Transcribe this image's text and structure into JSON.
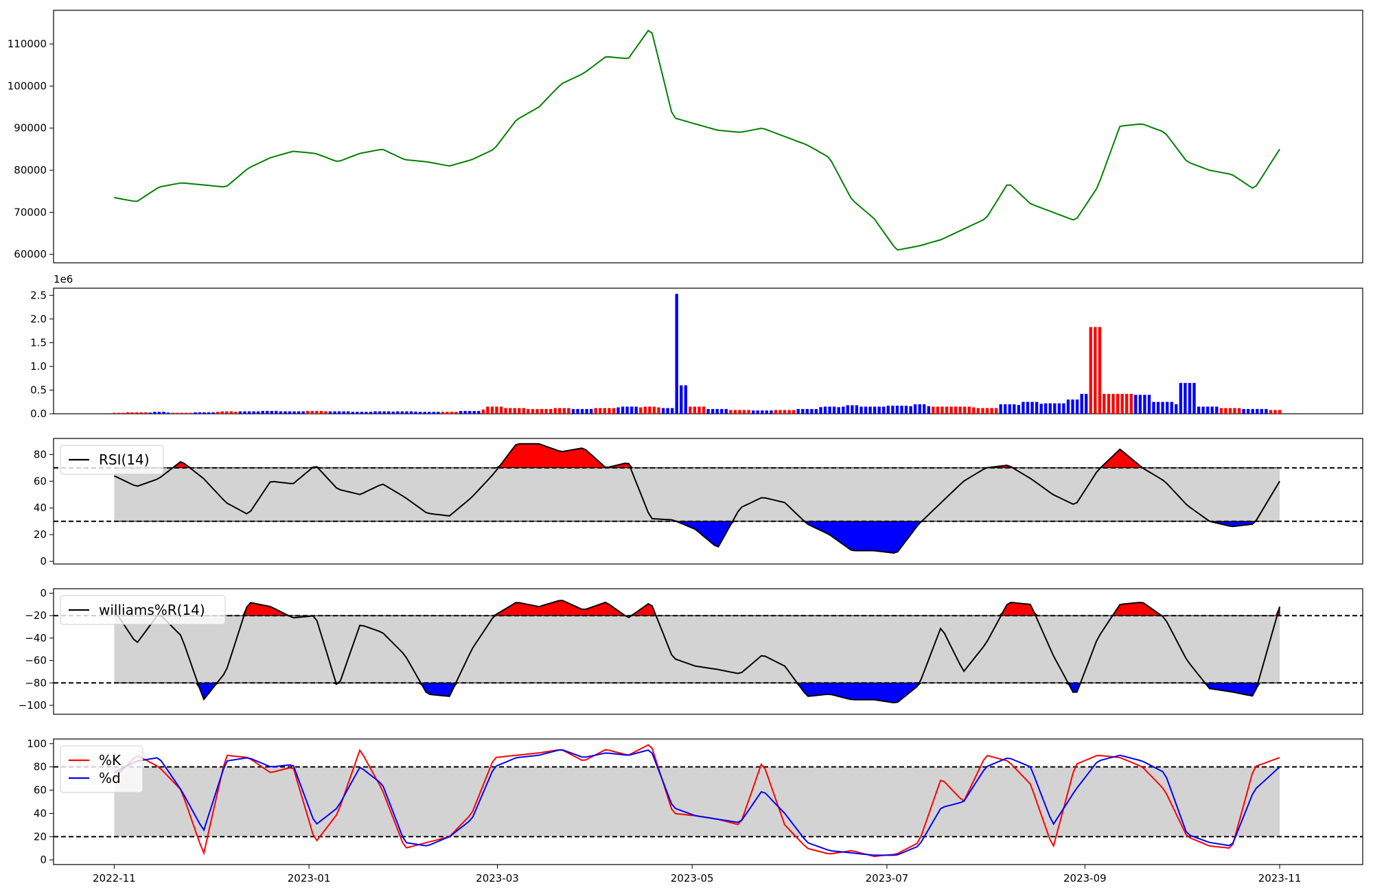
{
  "chart_data": [
    {
      "type": "line",
      "panel": "price",
      "color": "#008000",
      "ylim": [
        58000,
        118000
      ],
      "yticks": [
        60000,
        70000,
        80000,
        90000,
        100000,
        110000
      ],
      "ytick_labels": [
        "60000",
        "70000",
        "80000",
        "90000",
        "100000",
        "110000"
      ],
      "x_dates": [
        "2022-11-01",
        "2022-11-08",
        "2022-11-15",
        "2022-11-22",
        "2022-11-29",
        "2022-12-06",
        "2022-12-13",
        "2022-12-20",
        "2022-12-27",
        "2023-01-03",
        "2023-01-10",
        "2023-01-17",
        "2023-01-24",
        "2023-01-31",
        "2023-02-07",
        "2023-02-14",
        "2023-02-21",
        "2023-02-28",
        "2023-03-07",
        "2023-03-14",
        "2023-03-21",
        "2023-03-28",
        "2023-04-04",
        "2023-04-11",
        "2023-04-18",
        "2023-04-25",
        "2023-05-02",
        "2023-05-09",
        "2023-05-16",
        "2023-05-23",
        "2023-05-30",
        "2023-06-06",
        "2023-06-13",
        "2023-06-20",
        "2023-06-27",
        "2023-07-04",
        "2023-07-11",
        "2023-07-18",
        "2023-07-25",
        "2023-08-01",
        "2023-08-08",
        "2023-08-15",
        "2023-08-22",
        "2023-08-29",
        "2023-09-05",
        "2023-09-12",
        "2023-09-19",
        "2023-09-26",
        "2023-10-03",
        "2023-10-10",
        "2023-10-17",
        "2023-10-24",
        "2023-11-01"
      ],
      "values": [
        73500,
        72500,
        76000,
        77000,
        76500,
        76000,
        80500,
        83000,
        84500,
        84000,
        82000,
        84000,
        85000,
        82500,
        82000,
        81000,
        82500,
        85000,
        92000,
        95000,
        100500,
        103000,
        107000,
        106500,
        114000,
        92500,
        91000,
        89500,
        89000,
        90000,
        88000,
        86000,
        83000,
        73000,
        68500,
        61000,
        62000,
        63500,
        66000,
        68500,
        77000,
        72000,
        70000,
        68000,
        76000,
        90500,
        91000,
        89000,
        82000,
        80000,
        79000,
        75500,
        85000
      ]
    },
    {
      "type": "bar",
      "panel": "volume",
      "offset_label": "1e6",
      "ylim": [
        0,
        2.65
      ],
      "yticks": [
        0,
        0.5,
        1.0,
        1.5,
        2.0,
        2.5
      ],
      "ytick_labels": [
        "0.0",
        "0.5",
        "1.0",
        "1.5",
        "2.0",
        "2.5"
      ],
      "up_color": "#ff0000",
      "down_color": "#0000ff",
      "x_dates": [
        "2022-11-01",
        "2022-11-08",
        "2022-11-15",
        "2022-11-22",
        "2022-11-29",
        "2022-12-06",
        "2022-12-13",
        "2022-12-20",
        "2022-12-27",
        "2023-01-03",
        "2023-01-10",
        "2023-01-17",
        "2023-01-24",
        "2023-01-31",
        "2023-02-07",
        "2023-02-14",
        "2023-02-21",
        "2023-02-28",
        "2023-03-07",
        "2023-03-14",
        "2023-03-21",
        "2023-03-28",
        "2023-04-04",
        "2023-04-11",
        "2023-04-18",
        "2023-04-25",
        "2023-04-27",
        "2023-04-28",
        "2023-05-02",
        "2023-05-09",
        "2023-05-16",
        "2023-05-23",
        "2023-05-30",
        "2023-06-06",
        "2023-06-13",
        "2023-06-20",
        "2023-06-27",
        "2023-07-04",
        "2023-07-11",
        "2023-07-18",
        "2023-07-25",
        "2023-08-01",
        "2023-08-08",
        "2023-08-15",
        "2023-08-22",
        "2023-08-29",
        "2023-09-01",
        "2023-09-04",
        "2023-09-12",
        "2023-09-19",
        "2023-09-26",
        "2023-10-03",
        "2023-10-10",
        "2023-10-17",
        "2023-10-24",
        "2023-11-01"
      ],
      "values": [
        0.02,
        0.03,
        0.04,
        0.02,
        0.03,
        0.05,
        0.05,
        0.06,
        0.05,
        0.06,
        0.05,
        0.04,
        0.05,
        0.05,
        0.04,
        0.04,
        0.06,
        0.15,
        0.12,
        0.1,
        0.12,
        0.1,
        0.12,
        0.15,
        0.15,
        0.12,
        2.53,
        0.6,
        0.15,
        0.1,
        0.08,
        0.07,
        0.08,
        0.1,
        0.15,
        0.18,
        0.15,
        0.17,
        0.2,
        0.15,
        0.15,
        0.12,
        0.2,
        0.25,
        0.22,
        0.3,
        0.42,
        1.83,
        0.42,
        0.4,
        0.25,
        0.65,
        0.15,
        0.12,
        0.1,
        0.08
      ],
      "up": [
        true,
        true,
        false,
        true,
        false,
        true,
        false,
        false,
        false,
        true,
        false,
        false,
        false,
        false,
        false,
        true,
        false,
        true,
        true,
        true,
        true,
        false,
        true,
        false,
        true,
        false,
        false,
        false,
        true,
        false,
        true,
        false,
        true,
        false,
        false,
        false,
        false,
        false,
        false,
        true,
        true,
        true,
        false,
        false,
        false,
        false,
        false,
        true,
        true,
        false,
        false,
        false,
        false,
        true,
        false,
        true
      ]
    },
    {
      "type": "line",
      "panel": "rsi",
      "ylim": [
        -2,
        92
      ],
      "yticks": [
        0,
        20,
        40,
        60,
        80
      ],
      "ytick_labels": [
        "0",
        "20",
        "40",
        "60",
        "80"
      ],
      "upper": 70,
      "lower": 30,
      "legend": [
        "RSI(14)"
      ],
      "x_dates": [
        "2022-11-01",
        "2022-11-08",
        "2022-11-15",
        "2022-11-22",
        "2022-11-29",
        "2022-12-06",
        "2022-12-13",
        "2022-12-20",
        "2022-12-27",
        "2023-01-03",
        "2023-01-10",
        "2023-01-17",
        "2023-01-24",
        "2023-01-31",
        "2023-02-07",
        "2023-02-14",
        "2023-02-21",
        "2023-02-28",
        "2023-03-07",
        "2023-03-14",
        "2023-03-21",
        "2023-03-28",
        "2023-04-04",
        "2023-04-11",
        "2023-04-18",
        "2023-04-25",
        "2023-05-02",
        "2023-05-09",
        "2023-05-16",
        "2023-05-23",
        "2023-05-30",
        "2023-06-06",
        "2023-06-13",
        "2023-06-20",
        "2023-06-27",
        "2023-07-04",
        "2023-07-11",
        "2023-07-18",
        "2023-07-25",
        "2023-08-01",
        "2023-08-08",
        "2023-08-15",
        "2023-08-22",
        "2023-08-29",
        "2023-09-05",
        "2023-09-12",
        "2023-09-19",
        "2023-09-26",
        "2023-10-03",
        "2023-10-10",
        "2023-10-17",
        "2023-10-24",
        "2023-11-01"
      ],
      "values": [
        64,
        56,
        62,
        75,
        62,
        44,
        35,
        60,
        58,
        72,
        54,
        50,
        58,
        48,
        36,
        34,
        48,
        66,
        88,
        88,
        82,
        85,
        70,
        74,
        32,
        31,
        24,
        10,
        40,
        48,
        44,
        28,
        20,
        8,
        8,
        6,
        28,
        44,
        60,
        70,
        72,
        62,
        50,
        42,
        68,
        84,
        70,
        60,
        42,
        30,
        26,
        28,
        60
      ]
    },
    {
      "type": "line",
      "panel": "williams",
      "ylim": [
        -108,
        4
      ],
      "yticks": [
        -100,
        -80,
        -60,
        -40,
        -20,
        0
      ],
      "ytick_labels": [
        "−100",
        "−80",
        "−60",
        "−40",
        "−20",
        "0"
      ],
      "upper": -20,
      "lower": -80,
      "legend": [
        "williams%R(14)"
      ],
      "x_dates": [
        "2022-11-01",
        "2022-11-08",
        "2022-11-15",
        "2022-11-22",
        "2022-11-29",
        "2022-12-06",
        "2022-12-13",
        "2022-12-20",
        "2022-12-27",
        "2023-01-03",
        "2023-01-10",
        "2023-01-17",
        "2023-01-24",
        "2023-01-31",
        "2023-02-07",
        "2023-02-14",
        "2023-02-21",
        "2023-02-28",
        "2023-03-07",
        "2023-03-14",
        "2023-03-21",
        "2023-03-28",
        "2023-04-04",
        "2023-04-11",
        "2023-04-18",
        "2023-04-25",
        "2023-05-02",
        "2023-05-09",
        "2023-05-16",
        "2023-05-23",
        "2023-05-30",
        "2023-06-06",
        "2023-06-13",
        "2023-06-20",
        "2023-06-27",
        "2023-07-04",
        "2023-07-11",
        "2023-07-18",
        "2023-07-25",
        "2023-08-01",
        "2023-08-08",
        "2023-08-15",
        "2023-08-22",
        "2023-08-29",
        "2023-09-05",
        "2023-09-12",
        "2023-09-19",
        "2023-09-26",
        "2023-10-03",
        "2023-10-10",
        "2023-10-17",
        "2023-10-24",
        "2023-11-01"
      ],
      "values": [
        -15,
        -45,
        -18,
        -38,
        -95,
        -70,
        -8,
        -12,
        -22,
        -20,
        -85,
        -28,
        -35,
        -55,
        -90,
        -92,
        -50,
        -20,
        -8,
        -12,
        -6,
        -15,
        -8,
        -22,
        -8,
        -58,
        -65,
        -68,
        -72,
        -55,
        -65,
        -92,
        -90,
        -95,
        -95,
        -98,
        -82,
        -30,
        -70,
        -45,
        -8,
        -10,
        -55,
        -92,
        -40,
        -10,
        -8,
        -22,
        -60,
        -85,
        -88,
        -92,
        -12
      ]
    },
    {
      "type": "line",
      "panel": "stochastic",
      "ylim": [
        -4,
        104
      ],
      "yticks": [
        0,
        20,
        40,
        60,
        80,
        100
      ],
      "ytick_labels": [
        "0",
        "20",
        "40",
        "60",
        "80",
        "100"
      ],
      "upper": 80,
      "lower": 20,
      "legend": [
        "%K",
        "%d"
      ],
      "xticks": [
        "2022-11-01",
        "2023-01-01",
        "2023-03-01",
        "2023-05-01",
        "2023-07-01",
        "2023-09-01",
        "2023-11-01"
      ],
      "xtick_labels": [
        "2022-11",
        "2023-01",
        "2023-03",
        "2023-05",
        "2023-07",
        "2023-09",
        "2023-11"
      ],
      "x_dates": [
        "2022-11-01",
        "2022-11-08",
        "2022-11-15",
        "2022-11-22",
        "2022-11-29",
        "2022-12-06",
        "2022-12-13",
        "2022-12-20",
        "2022-12-27",
        "2023-01-03",
        "2023-01-10",
        "2023-01-17",
        "2023-01-24",
        "2023-01-31",
        "2023-02-07",
        "2023-02-14",
        "2023-02-21",
        "2023-02-28",
        "2023-03-07",
        "2023-03-14",
        "2023-03-21",
        "2023-03-28",
        "2023-04-04",
        "2023-04-11",
        "2023-04-18",
        "2023-04-25",
        "2023-05-02",
        "2023-05-09",
        "2023-05-16",
        "2023-05-23",
        "2023-05-30",
        "2023-06-06",
        "2023-06-13",
        "2023-06-20",
        "2023-06-27",
        "2023-07-04",
        "2023-07-11",
        "2023-07-18",
        "2023-07-25",
        "2023-08-01",
        "2023-08-08",
        "2023-08-15",
        "2023-08-22",
        "2023-08-29",
        "2023-09-05",
        "2023-09-12",
        "2023-09-19",
        "2023-09-26",
        "2023-10-03",
        "2023-10-10",
        "2023-10-17",
        "2023-10-24",
        "2023-11-01"
      ],
      "series": [
        {
          "name": "%K",
          "color": "#ff0000",
          "values": [
            70,
            90,
            80,
            60,
            5,
            90,
            88,
            75,
            80,
            15,
            40,
            95,
            60,
            10,
            15,
            20,
            40,
            88,
            90,
            92,
            95,
            85,
            95,
            90,
            100,
            40,
            38,
            35,
            30,
            85,
            30,
            10,
            5,
            8,
            3,
            5,
            15,
            70,
            50,
            90,
            85,
            65,
            10,
            82,
            90,
            88,
            80,
            60,
            20,
            12,
            10,
            80,
            88
          ]
        },
        {
          "name": "%d",
          "color": "#0000ff",
          "values": [
            75,
            85,
            88,
            60,
            25,
            85,
            88,
            80,
            82,
            30,
            45,
            80,
            65,
            15,
            12,
            20,
            35,
            80,
            88,
            90,
            95,
            88,
            92,
            90,
            95,
            45,
            38,
            35,
            32,
            60,
            40,
            15,
            8,
            6,
            4,
            4,
            12,
            45,
            50,
            80,
            88,
            80,
            30,
            60,
            85,
            90,
            85,
            75,
            22,
            15,
            12,
            60,
            80
          ]
        }
      ]
    }
  ]
}
